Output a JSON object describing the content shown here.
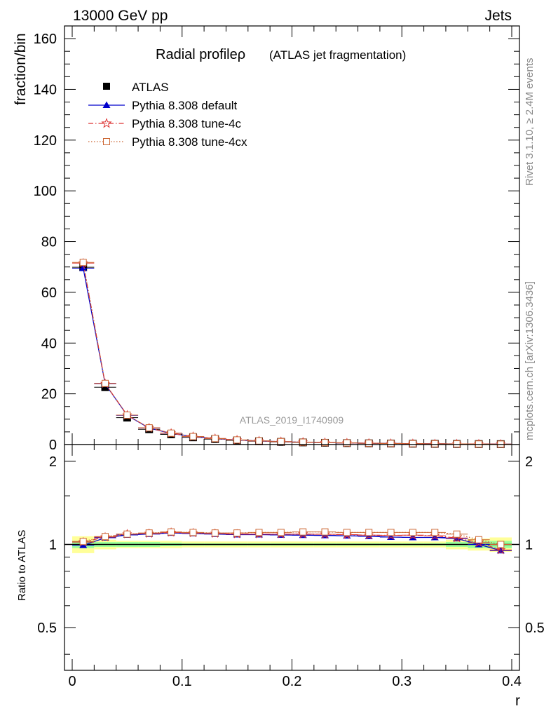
{
  "header": {
    "left": "13000 GeV pp",
    "right": "Jets"
  },
  "side_labels": {
    "rivet": "Rivet 3.1.10, ≥ 2.4M events",
    "mcplots": "mcplots.cern.ch [arXiv:1306.3436]"
  },
  "chart_data": [
    {
      "type": "scatter",
      "title": "Radial profileρ",
      "subtitle": "(ATLAS jet fragmentation)",
      "analysis_label": "ATLAS_2019_I1740909",
      "xlabel": "r",
      "ylabel": "fraction/bin",
      "xlim": [
        0,
        0.4
      ],
      "ylim": [
        0,
        165
      ],
      "xticks": [
        "0",
        "0.1",
        "0.2",
        "0.3",
        "0.4"
      ],
      "yticks": [
        "0",
        "20",
        "40",
        "60",
        "80",
        "100",
        "120",
        "140",
        "160"
      ],
      "x": [
        0.01,
        0.03,
        0.05,
        0.07,
        0.09,
        0.11,
        0.13,
        0.15,
        0.17,
        0.19,
        0.21,
        0.23,
        0.25,
        0.27,
        0.29,
        0.31,
        0.33,
        0.35,
        0.37,
        0.39
      ],
      "legend_position": "top-left",
      "series": [
        {
          "name": "ATLAS",
          "color": "#000000",
          "marker": "square-filled",
          "values": [
            69.9,
            22.6,
            10.6,
            6.0,
            4.0,
            2.85,
            2.15,
            1.65,
            1.3,
            1.05,
            0.85,
            0.7,
            0.58,
            0.48,
            0.4,
            0.33,
            0.28,
            0.24,
            0.2,
            0.17
          ]
        },
        {
          "name": "Pythia 8.308 default",
          "color": "#0000cc",
          "marker": "triangle-filled",
          "line": "solid",
          "values": [
            69.5,
            23.9,
            11.5,
            6.5,
            4.4,
            3.1,
            2.35,
            1.79,
            1.41,
            1.14,
            0.92,
            0.76,
            0.63,
            0.52,
            0.43,
            0.35,
            0.3,
            0.25,
            0.2,
            0.16
          ]
        },
        {
          "name": "Pythia 8.308 tune-4c",
          "color": "#dd3333",
          "marker": "star-open",
          "line": "dashdot",
          "values": [
            71.5,
            24.0,
            11.6,
            6.55,
            4.45,
            3.15,
            2.37,
            1.8,
            1.43,
            1.15,
            0.93,
            0.77,
            0.64,
            0.52,
            0.43,
            0.36,
            0.3,
            0.25,
            0.21,
            0.17
          ]
        },
        {
          "name": "Pythia 8.308 tune-4cx",
          "color": "#cc6633",
          "marker": "square-open",
          "line": "dotted",
          "values": [
            71.8,
            24.1,
            11.6,
            6.6,
            4.5,
            3.15,
            2.38,
            1.82,
            1.44,
            1.16,
            0.94,
            0.78,
            0.65,
            0.53,
            0.44,
            0.36,
            0.31,
            0.26,
            0.21,
            0.17
          ]
        }
      ]
    },
    {
      "type": "scatter",
      "title": "",
      "xlabel": "r",
      "ylabel": "Ratio to ATLAS",
      "xlim": [
        0,
        0.4
      ],
      "ylim": [
        0.35,
        2.3
      ],
      "scale": "log",
      "yticks": [
        "0.5",
        "1",
        "2"
      ],
      "yticks_right": [
        "0.5",
        "1",
        "2"
      ],
      "x": [
        0.01,
        0.03,
        0.05,
        0.07,
        0.09,
        0.11,
        0.13,
        0.15,
        0.17,
        0.19,
        0.21,
        0.23,
        0.25,
        0.27,
        0.29,
        0.31,
        0.33,
        0.35,
        0.37,
        0.39
      ],
      "band_green": [
        0.03,
        0.02,
        0.02,
        0.02,
        0.015,
        0.01,
        0.01,
        0.01,
        0.01,
        0.01,
        0.01,
        0.01,
        0.01,
        0.01,
        0.01,
        0.01,
        0.01,
        0.02,
        0.03,
        0.03
      ],
      "band_yellow": [
        0.07,
        0.04,
        0.03,
        0.03,
        0.03,
        0.025,
        0.025,
        0.025,
        0.025,
        0.025,
        0.025,
        0.025,
        0.025,
        0.025,
        0.025,
        0.025,
        0.025,
        0.04,
        0.05,
        0.06
      ],
      "series": [
        {
          "name": "Pythia 8.308 default",
          "color": "#0000cc",
          "marker": "triangle-filled",
          "line": "solid",
          "values": [
            0.993,
            1.057,
            1.082,
            1.09,
            1.1,
            1.095,
            1.09,
            1.085,
            1.085,
            1.082,
            1.08,
            1.078,
            1.075,
            1.07,
            1.063,
            1.06,
            1.06,
            1.05,
            1.0,
            0.95
          ]
        },
        {
          "name": "Pythia 8.308 tune-4c",
          "color": "#dd3333",
          "marker": "star-open",
          "line": "dashdot",
          "values": [
            1.02,
            1.063,
            1.09,
            1.095,
            1.105,
            1.1,
            1.095,
            1.09,
            1.09,
            1.09,
            1.09,
            1.088,
            1.085,
            1.08,
            1.078,
            1.08,
            1.075,
            1.055,
            1.015,
            0.955
          ]
        },
        {
          "name": "Pythia 8.308 tune-4cx",
          "color": "#cc6633",
          "marker": "square-open",
          "line": "dotted",
          "values": [
            1.025,
            1.068,
            1.09,
            1.1,
            1.11,
            1.105,
            1.1,
            1.1,
            1.105,
            1.105,
            1.11,
            1.11,
            1.105,
            1.105,
            1.105,
            1.105,
            1.105,
            1.09,
            1.04,
            1.0
          ]
        }
      ]
    }
  ]
}
